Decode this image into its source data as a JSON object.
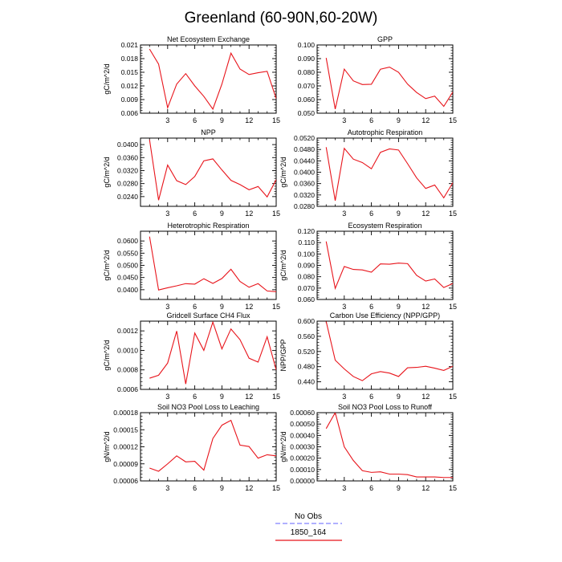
{
  "title": "Greenland (60-90N,60-20W)",
  "colors": {
    "model": "#e8141b",
    "obs": "#8080ff",
    "axis": "#000000"
  },
  "legend": {
    "obs_label": "No Obs",
    "model_label": "1850_164"
  },
  "chart_data": [
    {
      "type": "line",
      "title": "Net Ecosystem Exchange",
      "ylabel": "gC/m^2/d",
      "xlim": [
        0,
        15
      ],
      "ylim": [
        0.006,
        0.021
      ],
      "xticks": [
        3,
        6,
        9,
        12,
        15
      ],
      "yticks": [
        0.006,
        0.009,
        0.012,
        0.015,
        0.018,
        0.021
      ],
      "ytick_labels": [
        "0.006",
        "0.009",
        "0.012",
        "0.015",
        "0.018",
        "0.021"
      ],
      "x": [
        1,
        2,
        3,
        4,
        5,
        6,
        7,
        8,
        9,
        10,
        11,
        12,
        13,
        14,
        15
      ],
      "y": [
        0.0201,
        0.0168,
        0.0072,
        0.0124,
        0.0147,
        0.012,
        0.0097,
        0.0069,
        0.0124,
        0.0192,
        0.0157,
        0.0145,
        0.0149,
        0.0152,
        0.0092
      ]
    },
    {
      "type": "line",
      "title": "GPP",
      "ylabel": "",
      "xlim": [
        0,
        15
      ],
      "ylim": [
        0.05,
        0.1
      ],
      "xticks": [
        3,
        6,
        9,
        12,
        15
      ],
      "yticks": [
        0.05,
        0.06,
        0.07,
        0.08,
        0.09,
        0.1
      ],
      "ytick_labels": [
        "0.050",
        "0.060",
        "0.070",
        "0.080",
        "0.090",
        "0.100"
      ],
      "x": [
        1,
        2,
        3,
        4,
        5,
        6,
        7,
        8,
        9,
        10,
        11,
        12,
        13,
        14,
        15
      ],
      "y": [
        0.0905,
        0.053,
        0.0823,
        0.0737,
        0.071,
        0.0712,
        0.0822,
        0.0838,
        0.08,
        0.0713,
        0.0652,
        0.0607,
        0.0625,
        0.055,
        0.0655
      ]
    },
    {
      "type": "line",
      "title": "NPP",
      "ylabel": "gC/m^2/d",
      "xlim": [
        0,
        15
      ],
      "ylim": [
        0.021,
        0.042
      ],
      "xticks": [
        3,
        6,
        9,
        12,
        15
      ],
      "yticks": [
        0.024,
        0.028,
        0.032,
        0.036,
        0.04
      ],
      "ytick_labels": [
        "0.0240",
        "0.0280",
        "0.0320",
        "0.0360",
        "0.0400"
      ],
      "x": [
        1,
        2,
        3,
        4,
        5,
        6,
        7,
        8,
        9,
        10,
        11,
        12,
        13,
        14,
        15
      ],
      "y": [
        0.0415,
        0.0229,
        0.0337,
        0.0289,
        0.0277,
        0.0302,
        0.035,
        0.0356,
        0.0322,
        0.029,
        0.0277,
        0.0261,
        0.0271,
        0.0239,
        0.0292
      ]
    },
    {
      "type": "line",
      "title": "Autotrophic Respiration",
      "ylabel": "gC/m^2/d",
      "xlim": [
        0,
        15
      ],
      "ylim": [
        0.028,
        0.052
      ],
      "xticks": [
        3,
        6,
        9,
        12,
        15
      ],
      "yticks": [
        0.028,
        0.032,
        0.036,
        0.04,
        0.044,
        0.048,
        0.052
      ],
      "ytick_labels": [
        "0.0280",
        "0.0320",
        "0.0360",
        "0.0400",
        "0.0440",
        "0.0480",
        "0.0520"
      ],
      "x": [
        1,
        2,
        3,
        4,
        5,
        6,
        7,
        8,
        9,
        10,
        11,
        12,
        13,
        14,
        15
      ],
      "y": [
        0.0488,
        0.03,
        0.0484,
        0.0446,
        0.0434,
        0.0412,
        0.047,
        0.0482,
        0.0478,
        0.043,
        0.038,
        0.0343,
        0.0355,
        0.031,
        0.0363
      ]
    },
    {
      "type": "line",
      "title": "Heterotrophic Respiration",
      "ylabel": "gC/m^2/d",
      "xlim": [
        0,
        15
      ],
      "ylim": [
        0.036,
        0.064
      ],
      "xticks": [
        3,
        6,
        9,
        12,
        15
      ],
      "yticks": [
        0.04,
        0.045,
        0.05,
        0.055,
        0.06
      ],
      "ytick_labels": [
        "0.0400",
        "0.0450",
        "0.0500",
        "0.0550",
        "0.0600"
      ],
      "x": [
        1,
        2,
        3,
        4,
        5,
        6,
        7,
        8,
        9,
        10,
        11,
        12,
        13,
        14,
        15
      ],
      "y": [
        0.0618,
        0.0399,
        0.0408,
        0.0416,
        0.0425,
        0.0423,
        0.0445,
        0.0426,
        0.0446,
        0.0484,
        0.0434,
        0.041,
        0.0425,
        0.0395,
        0.0392
      ]
    },
    {
      "type": "line",
      "title": "Ecosystem Respiration",
      "ylabel": "gC/m^2/d",
      "xlim": [
        0,
        15
      ],
      "ylim": [
        0.06,
        0.12
      ],
      "xticks": [
        3,
        6,
        9,
        12,
        15
      ],
      "yticks": [
        0.06,
        0.07,
        0.08,
        0.09,
        0.1,
        0.11,
        0.12
      ],
      "ytick_labels": [
        "0.060",
        "0.070",
        "0.080",
        "0.090",
        "0.100",
        "0.110",
        "0.120"
      ],
      "x": [
        1,
        2,
        3,
        4,
        5,
        6,
        7,
        8,
        9,
        10,
        11,
        12,
        13,
        14,
        15
      ],
      "y": [
        0.111,
        0.0697,
        0.089,
        0.0864,
        0.086,
        0.084,
        0.0913,
        0.091,
        0.092,
        0.0915,
        0.0812,
        0.0762,
        0.078,
        0.0705,
        0.074
      ]
    },
    {
      "type": "line",
      "title": "Gridcell Surface CH4 Flux",
      "ylabel": "gC/m^2/d",
      "xlim": [
        0,
        15
      ],
      "ylim": [
        0.0006,
        0.0013
      ],
      "xticks": [
        3,
        6,
        9,
        12,
        15
      ],
      "yticks": [
        0.0006,
        0.0008,
        0.001,
        0.0012
      ],
      "ytick_labels": [
        "0.0006",
        "0.0008",
        "0.0010",
        "0.0012"
      ],
      "x": [
        1,
        2,
        3,
        4,
        5,
        6,
        7,
        8,
        9,
        10,
        11,
        12,
        13,
        14,
        15
      ],
      "y": [
        0.000715,
        0.000745,
        0.00087,
        0.001198,
        0.000655,
        0.001178,
        0.001,
        0.00129,
        0.001015,
        0.00122,
        0.00111,
        0.00092,
        0.00088,
        0.00114,
        0.0008
      ]
    },
    {
      "type": "line",
      "title": "Carbon Use Efficiency (NPP/GPP)",
      "ylabel": "NPP/GPP",
      "xlim": [
        0,
        15
      ],
      "ylim": [
        0.42,
        0.6
      ],
      "xticks": [
        3,
        6,
        9,
        12,
        15
      ],
      "yticks": [
        0.44,
        0.48,
        0.52,
        0.56,
        0.6
      ],
      "ytick_labels": [
        "0.440",
        "0.480",
        "0.520",
        "0.560",
        "0.600"
      ],
      "x": [
        1,
        2,
        3,
        4,
        5,
        6,
        7,
        8,
        9,
        10,
        11,
        12,
        13,
        14,
        15
      ],
      "y": [
        0.599,
        0.497,
        0.474,
        0.454,
        0.443,
        0.461,
        0.467,
        0.463,
        0.454,
        0.477,
        0.478,
        0.481,
        0.476,
        0.47,
        0.481
      ]
    },
    {
      "type": "line",
      "title": "Soil NO3 Pool Loss to Leaching",
      "ylabel": "gN/m^2/d",
      "xlim": [
        0,
        15
      ],
      "ylim": [
        6e-05,
        0.00018
      ],
      "xticks": [
        3,
        6,
        9,
        12,
        15
      ],
      "yticks": [
        6e-05,
        9e-05,
        0.00012,
        0.00015,
        0.00018
      ],
      "ytick_labels": [
        "0.00006",
        "0.00009",
        "0.00012",
        "0.00015",
        "0.00018"
      ],
      "x": [
        1,
        2,
        3,
        4,
        5,
        6,
        7,
        8,
        9,
        10,
        11,
        12,
        13,
        14,
        15
      ],
      "y": [
        8.26e-05,
        7.7e-05,
        9e-05,
        0.000104,
        9.35e-05,
        9.45e-05,
        7.9e-05,
        0.0001345,
        0.000158,
        0.0001665,
        0.000123,
        0.0001205,
        0.0001,
        0.000106,
        0.000104
      ]
    },
    {
      "type": "line",
      "title": "Soil NO3 Pool Loss to Runoff",
      "ylabel": "gN/m^2/d",
      "xlim": [
        0,
        15
      ],
      "ylim": [
        0,
        0.0006
      ],
      "xticks": [
        3,
        6,
        9,
        12,
        15
      ],
      "yticks": [
        0,
        0.0001,
        0.0002,
        0.0003,
        0.0004,
        0.0005,
        0.0006
      ],
      "ytick_labels": [
        "0.00000",
        "0.00010",
        "0.00020",
        "0.00030",
        "0.00040",
        "0.00050",
        "0.00060"
      ],
      "x": [
        1,
        2,
        3,
        4,
        5,
        6,
        7,
        8,
        9,
        10,
        11,
        12,
        13,
        14,
        15
      ],
      "y": [
        0.00046,
        0.0006,
        0.0003,
        0.00018,
        9e-05,
        7.5e-05,
        8e-05,
        6e-05,
        6e-05,
        5.5e-05,
        3.5e-05,
        3.5e-05,
        3.5e-05,
        3e-05,
        3e-05
      ]
    }
  ]
}
